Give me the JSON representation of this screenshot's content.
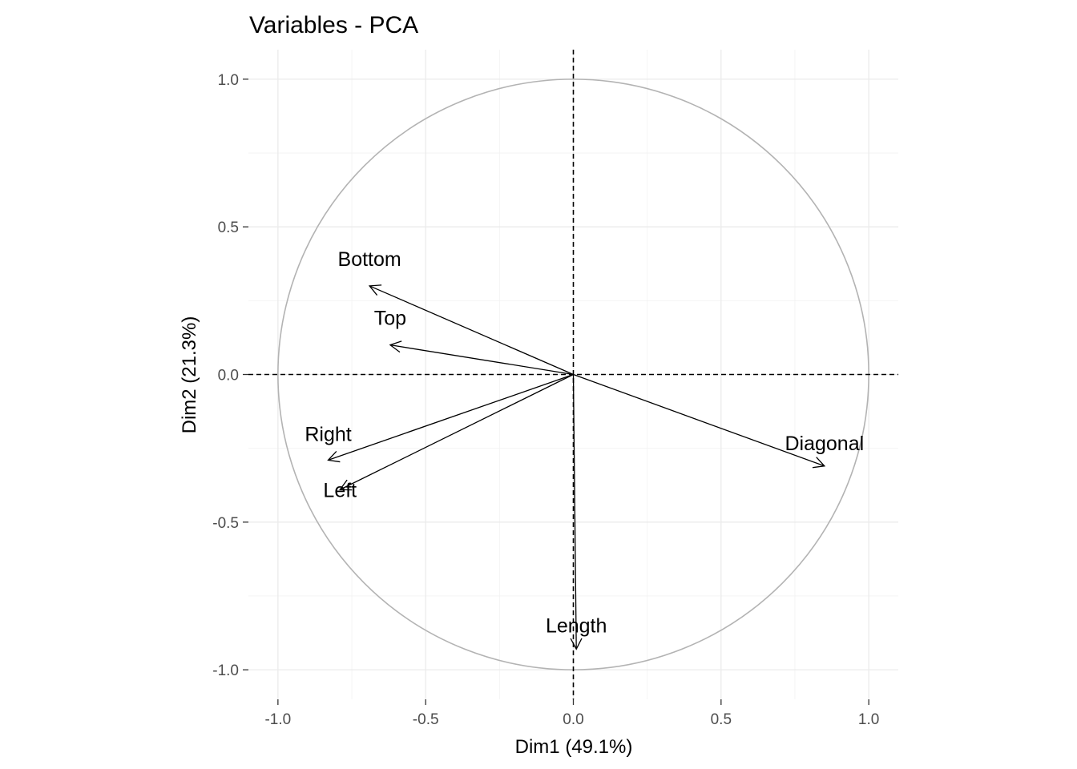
{
  "chart_data": {
    "type": "scatter",
    "title": "Variables - PCA",
    "xlabel": "Dim1 (49.1%)",
    "ylabel": "Dim2 (21.3%)",
    "xlim": [
      -1.1,
      1.1
    ],
    "ylim": [
      -1.1,
      1.1
    ],
    "xticks": [
      -1.0,
      -0.5,
      0.0,
      0.5,
      1.0
    ],
    "yticks": [
      -1.0,
      -0.5,
      0.0,
      0.5,
      1.0
    ],
    "xtick_labels": [
      "-1.0",
      "-0.5",
      "0.0",
      "0.5",
      "1.0"
    ],
    "ytick_labels": [
      "-1.0",
      "-0.5",
      "0.0",
      "0.5",
      "1.0"
    ],
    "grid": true,
    "correlation_circle_radius": 1.0,
    "reference_lines": {
      "x": 0,
      "y": 0,
      "style": "dashed"
    },
    "variables": [
      {
        "name": "Bottom",
        "x": -0.69,
        "y": 0.3
      },
      {
        "name": "Top",
        "x": -0.62,
        "y": 0.1
      },
      {
        "name": "Right",
        "x": -0.83,
        "y": -0.29
      },
      {
        "name": "Left",
        "x": -0.79,
        "y": -0.39
      },
      {
        "name": "Diagonal",
        "x": 0.85,
        "y": -0.31
      },
      {
        "name": "Length",
        "x": 0.01,
        "y": -0.93
      }
    ]
  }
}
